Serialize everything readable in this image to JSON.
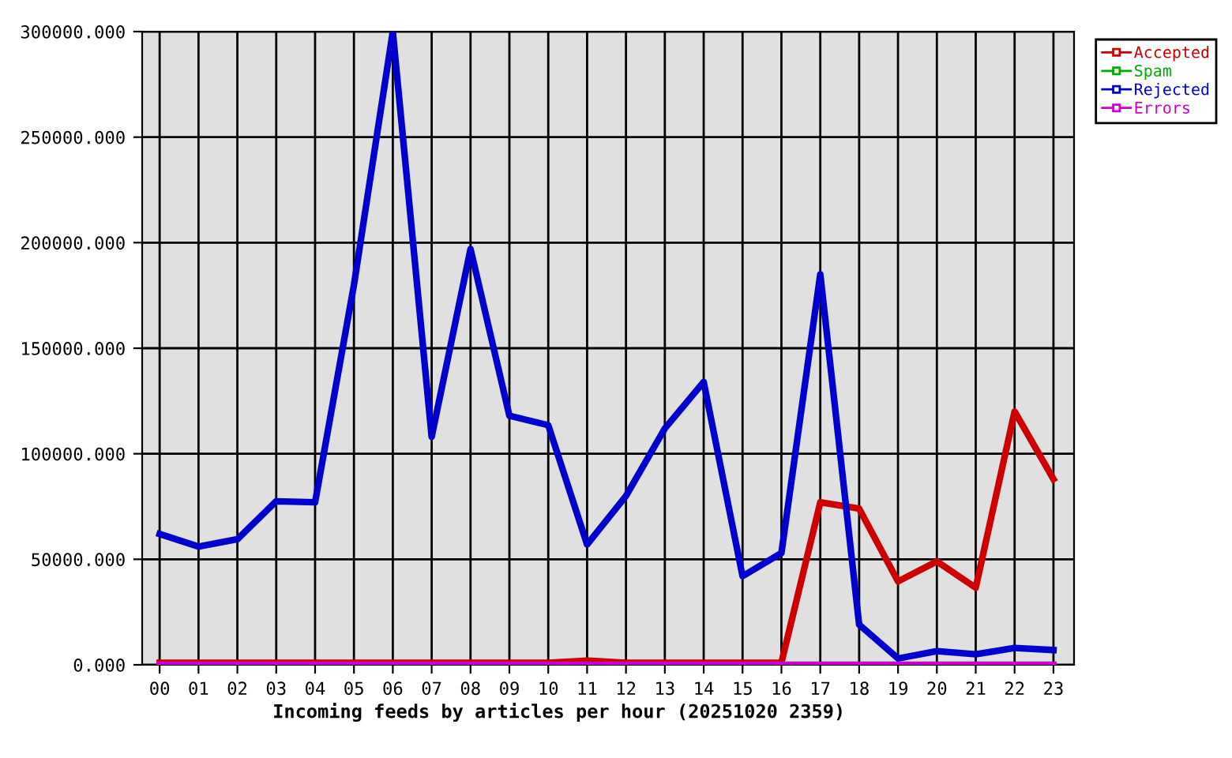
{
  "chart_data": {
    "type": "line",
    "xlabel": "Incoming feeds by articles per hour (20251020 2359)",
    "categories": [
      "00",
      "01",
      "02",
      "03",
      "04",
      "05",
      "06",
      "07",
      "08",
      "09",
      "10",
      "11",
      "12",
      "13",
      "14",
      "15",
      "16",
      "17",
      "18",
      "19",
      "20",
      "21",
      "22",
      "23"
    ],
    "series": [
      {
        "name": "Accepted",
        "color": "#cc0000",
        "values": [
          1000,
          1000,
          1000,
          1000,
          1000,
          1000,
          1000,
          1000,
          1000,
          1000,
          1000,
          2000,
          1000,
          1000,
          1000,
          1000,
          1000,
          77000,
          74000,
          39500,
          49000,
          36500,
          120000,
          88000
        ]
      },
      {
        "name": "Spam",
        "color": "#00aa00",
        "values": [
          null,
          null,
          null,
          null,
          null,
          null,
          null,
          null,
          null,
          null,
          null,
          null,
          null,
          null,
          null,
          null,
          null,
          null,
          null,
          null,
          null,
          null,
          null,
          null
        ]
      },
      {
        "name": "Rejected",
        "color": "#0000cc",
        "values": [
          62000,
          56000,
          59500,
          77500,
          77000,
          180000,
          300000,
          108000,
          197000,
          118000,
          113500,
          57000,
          80000,
          112000,
          134000,
          42000,
          53000,
          185000,
          19000,
          3000,
          6500,
          5000,
          8000,
          7000
        ]
      },
      {
        "name": "Errors",
        "color": "#cc00cc",
        "values": [
          0,
          0,
          0,
          0,
          0,
          0,
          0,
          0,
          0,
          0,
          0,
          0,
          0,
          0,
          0,
          0,
          0,
          0,
          0,
          0,
          0,
          0,
          0,
          0
        ]
      }
    ],
    "ylim": [
      0,
      300000
    ],
    "yticks": [
      {
        "value": 0,
        "label": "0.000"
      },
      {
        "value": 50000,
        "label": "50000.000"
      },
      {
        "value": 100000,
        "label": "100000.000"
      },
      {
        "value": 150000,
        "label": "150000.000"
      },
      {
        "value": 200000,
        "label": "200000.000"
      },
      {
        "value": 250000,
        "label": "250000.000"
      },
      {
        "value": 300000,
        "label": "300000.000"
      }
    ],
    "grid": true,
    "legend": "top right",
    "line_style": "solid"
  }
}
